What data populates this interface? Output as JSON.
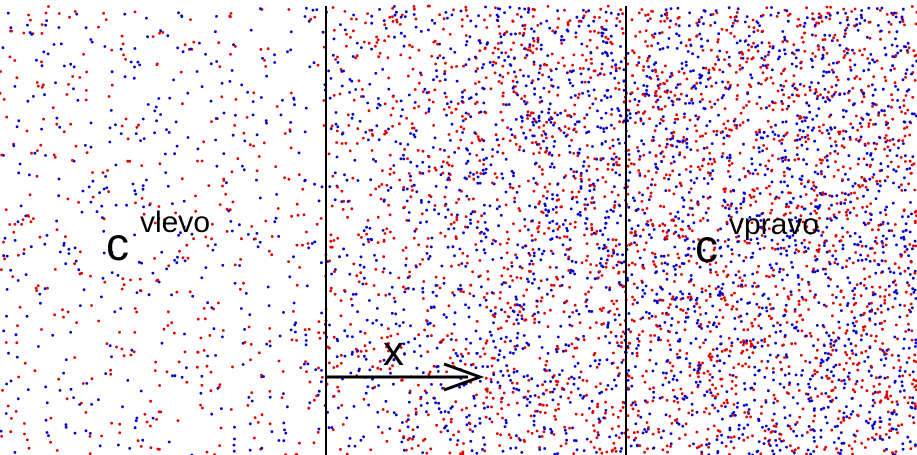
{
  "labels": {
    "left_symbol": "c",
    "left_superscript": "vlevo",
    "right_symbol": "c",
    "right_superscript": "vpravo",
    "axis_label": "x"
  },
  "colors": {
    "background": "#ffffff",
    "particle_a": "#e00000",
    "particle_b": "#0000d0",
    "lines": "#000000"
  },
  "regions": [
    {
      "name": "left-reservoir",
      "relative_density": 0.25
    },
    {
      "name": "membrane-gradient",
      "relative_density_start": 0.45,
      "relative_density_end": 1.0
    },
    {
      "name": "right-reservoir",
      "relative_density": 1.0
    }
  ]
}
